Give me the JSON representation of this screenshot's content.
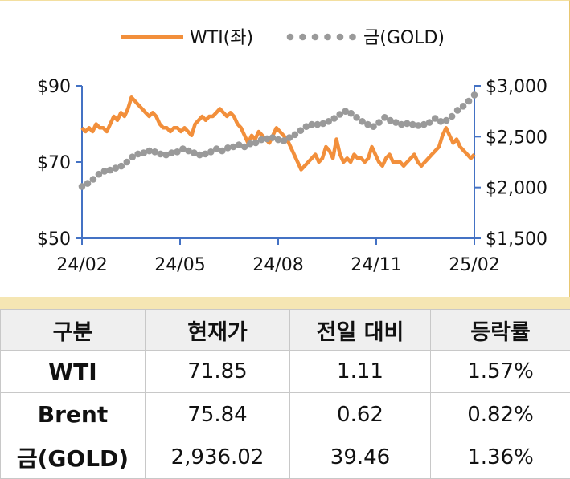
{
  "chart_data": {
    "type": "line",
    "x_ticks": [
      "24/02",
      "24/05",
      "24/08",
      "24/11",
      "25/02"
    ],
    "y_left": {
      "ticks": [
        "$50",
        "$70",
        "$90"
      ],
      "values": [
        50,
        70,
        90
      ],
      "range": [
        50,
        90
      ]
    },
    "y_right": {
      "ticks": [
        "$1,500",
        "$2,000",
        "$2,500",
        "$3,000"
      ],
      "values": [
        1500,
        2000,
        2500,
        3000
      ],
      "range": [
        1500,
        3000
      ]
    },
    "legend_position": "top-center",
    "series": [
      {
        "name": "WTI(좌)",
        "axis": "left",
        "color": "#f28f3b",
        "style": "solid",
        "values": [
          79,
          78,
          79,
          78,
          80,
          79,
          79,
          78,
          80,
          82,
          81,
          83,
          82,
          84,
          87,
          86,
          85,
          84,
          83,
          82,
          83,
          82,
          80,
          79,
          79,
          78,
          79,
          79,
          78,
          79,
          78,
          77,
          80,
          81,
          82,
          81,
          82,
          82,
          83,
          84,
          83,
          82,
          83,
          82,
          80,
          79,
          77,
          75,
          77,
          76,
          78,
          77,
          76,
          75,
          77,
          79,
          78,
          77,
          76,
          74,
          72,
          70,
          68,
          69,
          70,
          71,
          72,
          70,
          71,
          74,
          73,
          71,
          76,
          72,
          70,
          71,
          70,
          72,
          71,
          71,
          70,
          71,
          74,
          72,
          70,
          69,
          71,
          72,
          70,
          70,
          70,
          69,
          70,
          71,
          72,
          70,
          69,
          70,
          71,
          72,
          73,
          74,
          77,
          79,
          77,
          75,
          76,
          74,
          73,
          72,
          71,
          72
        ]
      },
      {
        "name": "금(GOLD)",
        "axis": "right",
        "color": "#9a9a9a",
        "style": "dotted",
        "values": [
          2010,
          2040,
          2080,
          2130,
          2160,
          2170,
          2190,
          2210,
          2250,
          2300,
          2330,
          2340,
          2360,
          2350,
          2330,
          2320,
          2340,
          2350,
          2380,
          2360,
          2340,
          2320,
          2330,
          2350,
          2380,
          2360,
          2390,
          2400,
          2420,
          2400,
          2430,
          2440,
          2470,
          2480,
          2490,
          2470,
          2460,
          2490,
          2520,
          2560,
          2600,
          2620,
          2620,
          2630,
          2650,
          2680,
          2720,
          2750,
          2730,
          2690,
          2650,
          2620,
          2600,
          2640,
          2690,
          2660,
          2640,
          2620,
          2630,
          2620,
          2610,
          2620,
          2640,
          2680,
          2650,
          2660,
          2700,
          2760,
          2800,
          2850,
          2910
        ]
      }
    ]
  },
  "table": {
    "headers": [
      "구분",
      "현재가",
      "전일 대비",
      "등락률"
    ],
    "rows": [
      [
        "WTI",
        "71.85",
        "1.11",
        "1.57%"
      ],
      [
        "Brent",
        "75.84",
        "0.62",
        "0.82%"
      ],
      [
        "금(GOLD)",
        "2,936.02",
        "39.46",
        "1.36%"
      ]
    ]
  },
  "colors": {
    "axis": "#4472c4",
    "band": "#f5e6b3",
    "header_bg": "#efefef"
  }
}
